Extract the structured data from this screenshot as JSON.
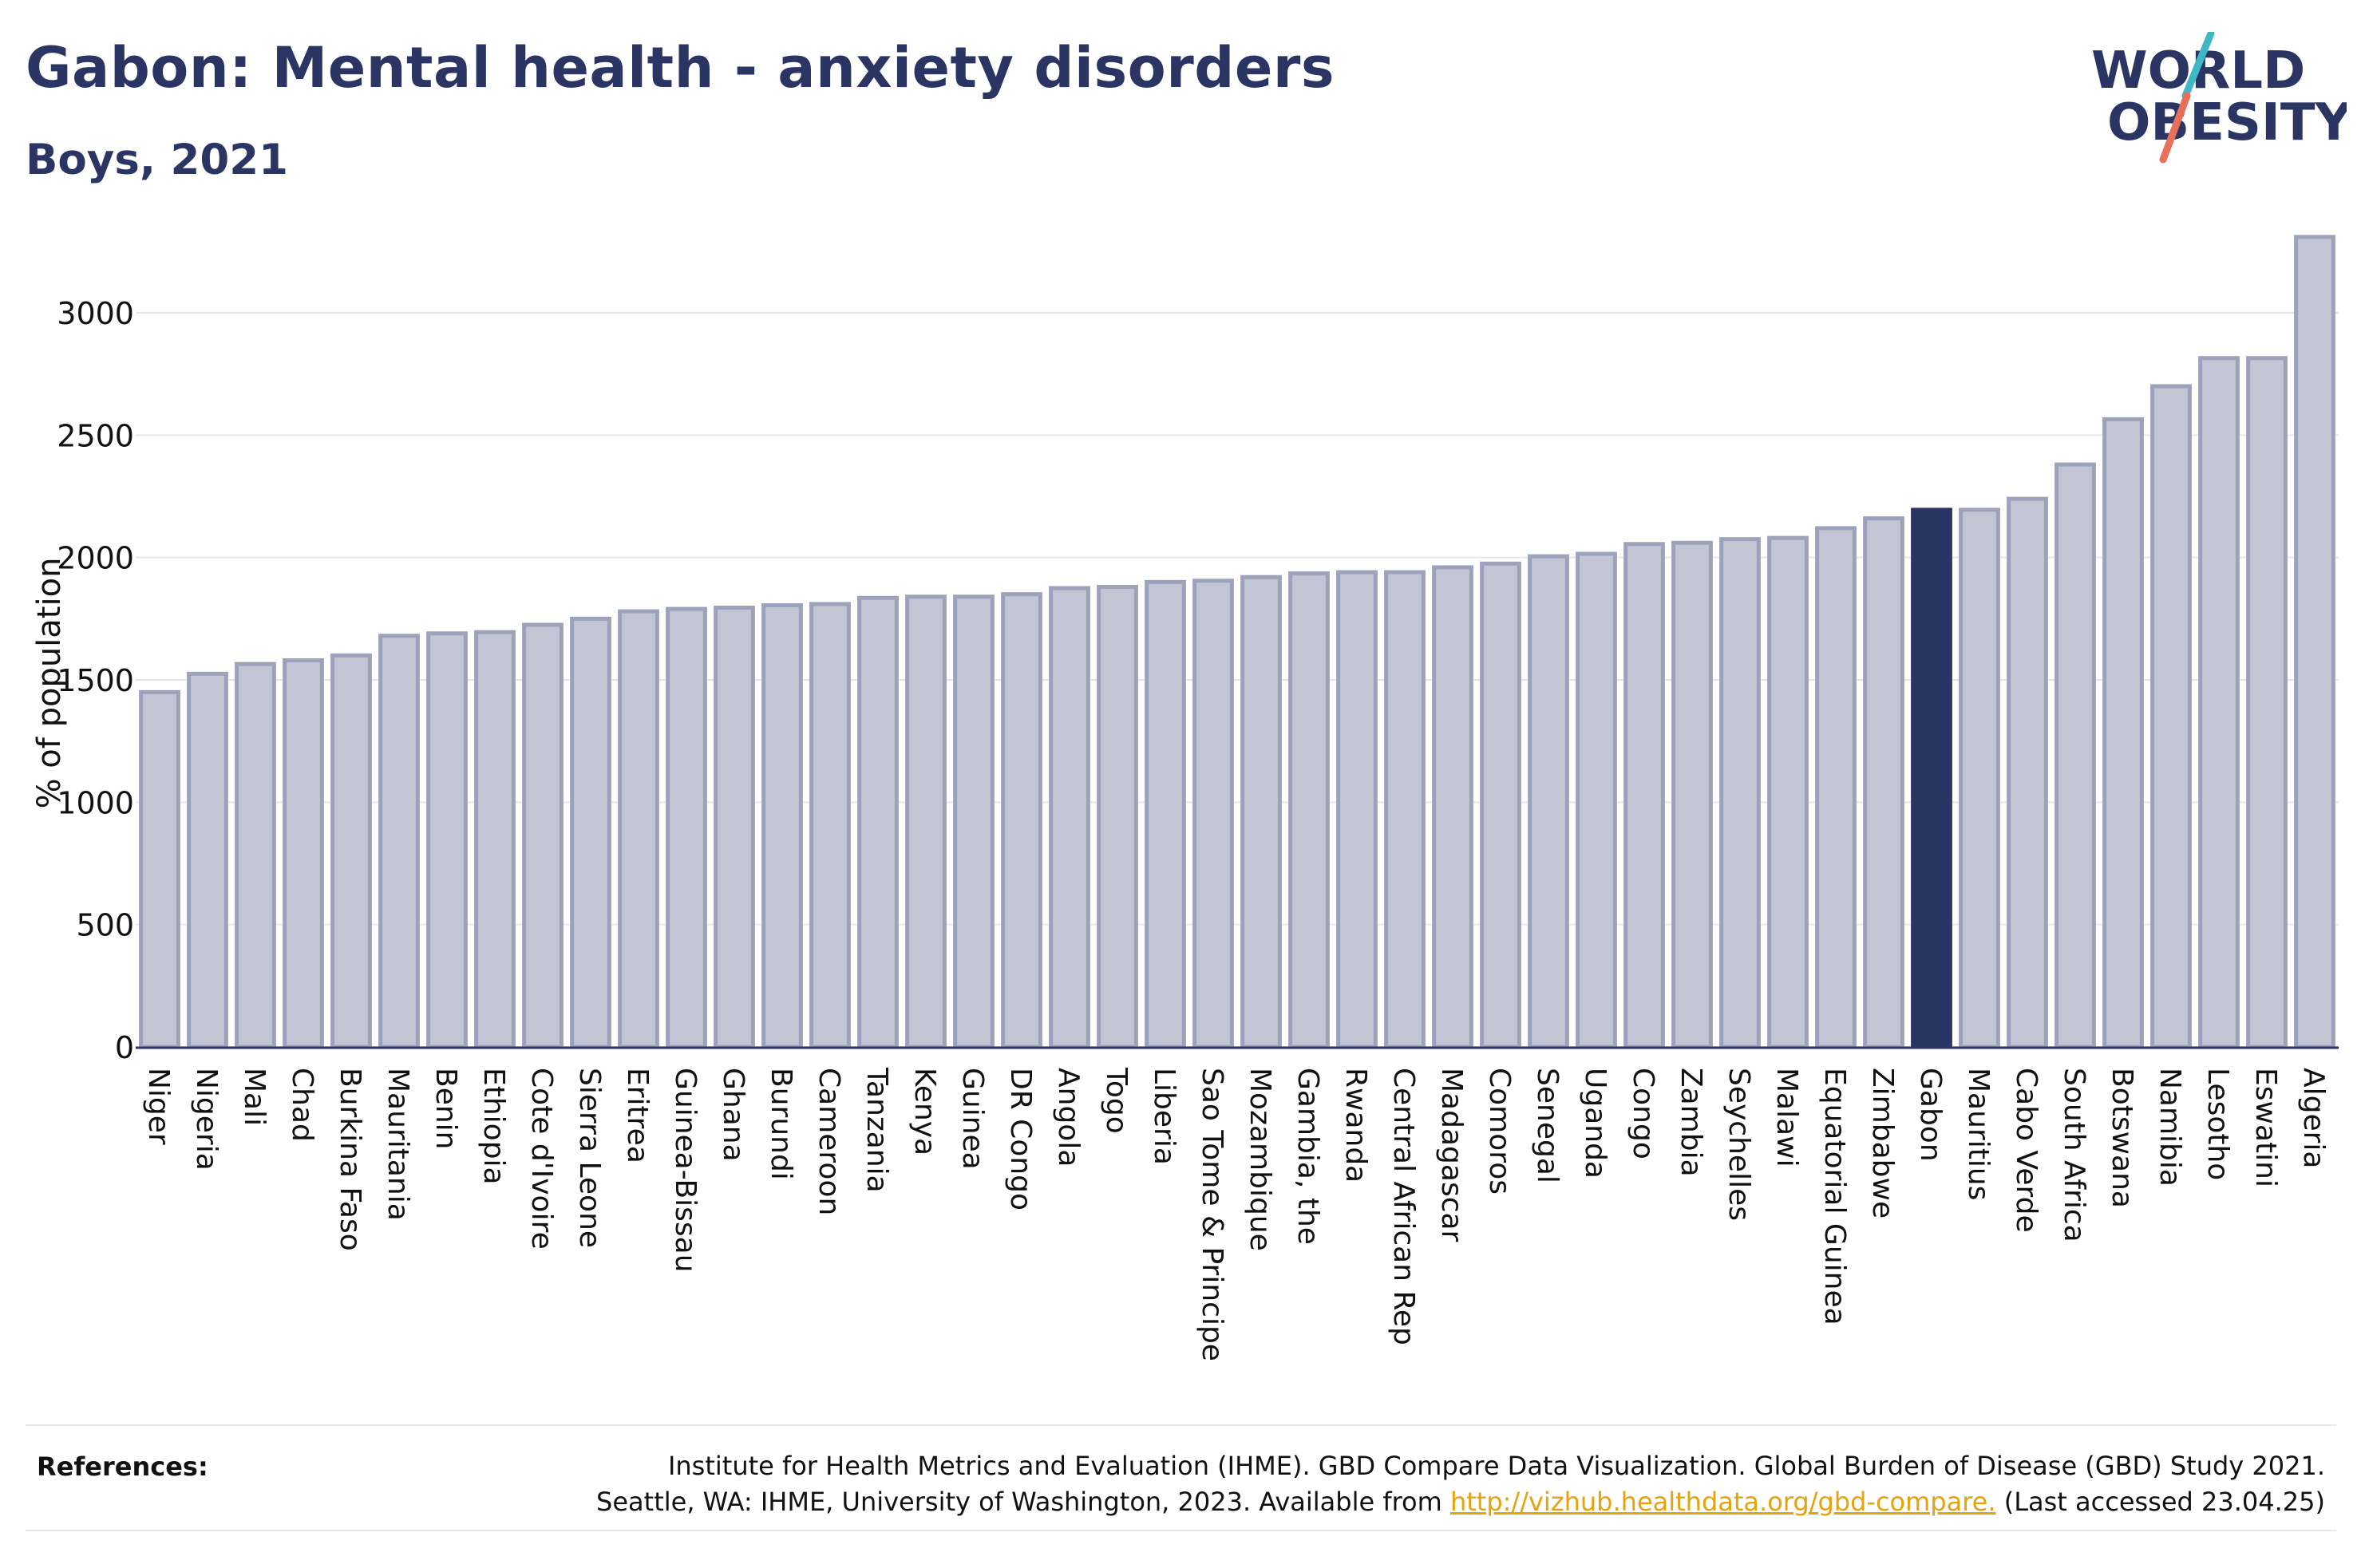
{
  "header": {
    "title": "Gabon: Mental health - anxiety disorders",
    "subtitle": "Boys, 2021"
  },
  "logo": {
    "line1": "WORLD",
    "line2": "OBESITY",
    "text_color": "#2b3564",
    "slash_colors": [
      "#3fb8c4",
      "#e8705a"
    ]
  },
  "colors": {
    "bar_default": "#c2c5d3",
    "bar_border": "#9da2bb",
    "bar_highlight": "#2b3564",
    "grid": "#e6e6e6",
    "axis": "#2b3564"
  },
  "chart_data": {
    "type": "bar",
    "title": "Gabon: Mental health - anxiety disorders",
    "subtitle": "Boys, 2021",
    "ylabel": "% of population",
    "xlabel": "",
    "ylim": [
      0,
      3300
    ],
    "yticks": [
      0,
      500,
      1000,
      1500,
      2000,
      2500,
      3000
    ],
    "grid": true,
    "highlight": "Gabon",
    "categories": [
      "Niger",
      "Nigeria",
      "Mali",
      "Chad",
      "Burkina Faso",
      "Mauritania",
      "Benin",
      "Ethiopia",
      "Cote d'Ivoire",
      "Sierra Leone",
      "Eritrea",
      "Guinea-Bissau",
      "Ghana",
      "Burundi",
      "Cameroon",
      "Tanzania",
      "Kenya",
      "Guinea",
      "DR Congo",
      "Angola",
      "Togo",
      "Liberia",
      "Sao Tome & Principe",
      "Mozambique",
      "Gambia, the",
      "Rwanda",
      "Central African Rep",
      "Madagascar",
      "Comoros",
      "Senegal",
      "Uganda",
      "Congo",
      "Zambia",
      "Seychelles",
      "Malawi",
      "Equatorial Guinea",
      "Zimbabwe",
      "Gabon",
      "Mauritius",
      "Cabo Verde",
      "South Africa",
      "Botswana",
      "Namibia",
      "Lesotho",
      "Eswatini",
      "Algeria"
    ],
    "values": [
      1450,
      1525,
      1565,
      1580,
      1600,
      1680,
      1690,
      1695,
      1725,
      1750,
      1780,
      1790,
      1795,
      1805,
      1810,
      1835,
      1840,
      1840,
      1850,
      1875,
      1880,
      1900,
      1905,
      1920,
      1935,
      1940,
      1940,
      1960,
      1975,
      2005,
      2015,
      2055,
      2060,
      2075,
      2080,
      2120,
      2160,
      2195,
      2195,
      2240,
      2380,
      2565,
      2700,
      2815,
      2815,
      3310
    ]
  },
  "references": {
    "label": "References:",
    "line1": "Institute for Health Metrics and Evaluation (IHME). GBD Compare Data Visualization. Global Burden of Disease (GBD) Study 2021.",
    "line2_prefix": "Seattle, WA: IHME, University of Washington, 2023. Available from ",
    "link": "http://vizhub.healthdata.org/gbd-compare.",
    "line2_suffix": " (Last accessed 23.04.25)"
  }
}
